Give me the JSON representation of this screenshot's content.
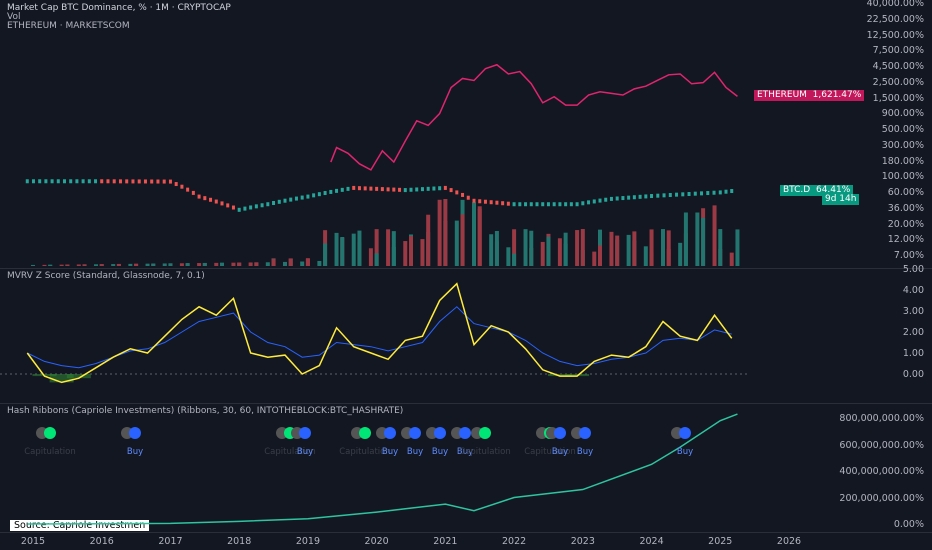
{
  "header": {
    "title": "Market Cap BTC Dominance, % · 1M · CRYPTOCAP",
    "vol": "Vol",
    "eth": "ETHEREUM · MARKETSCOM"
  },
  "pane1_axis": [
    "40,000.00%",
    "22,500.00%",
    "12,500.00%",
    "7,500.00%",
    "4,500.00%",
    "2,500.00%",
    "1,500.00%",
    "900.00%",
    "500.00%",
    "300.00%",
    "180.00%",
    "100.00%",
    "60.00%",
    "36.00%",
    "20.00%",
    "12.00%",
    "7.00%"
  ],
  "pane2_axis": [
    "5.00",
    "4.00",
    "3.00",
    "2.00",
    "1.00",
    "0.00"
  ],
  "pane3_axis": [
    "800,000,000.00%",
    "600,000,000.00%",
    "400,000,000.00%",
    "200,000,000.00%",
    "0.00%"
  ],
  "x_axis": [
    "2015",
    "2016",
    "2017",
    "2018",
    "2019",
    "2020",
    "2021",
    "2022",
    "2023",
    "2024",
    "2025",
    "2026"
  ],
  "tags": {
    "eth_name": "ETHEREUM",
    "eth_value": "1,621.47%",
    "btcd_name": "BTC.D",
    "btcd_value": "64.41%",
    "btcd_countdown": "9d 14h"
  },
  "mvrv_title": "MVRV Z Score (Standard, Glassnode, 7, 0.1)",
  "hash_title": "Hash Ribbons (Capriole Investments) (Ribbons, 30, 60, INTOTHEBLOCK:BTC_HASHRATE)",
  "source": "Source: Capriole Investmen",
  "ribbon_labels": [
    "Capitulation",
    "Buy",
    "Capitulation",
    "Buy",
    "Capitulation",
    "Buy",
    "Buy",
    "Buy",
    "Buy",
    "Capitulation",
    "Capitulation",
    "Buy",
    "Buy",
    "Buy"
  ],
  "colors": {
    "eth": "#e0246e",
    "btcd": "#26a69a",
    "mvrv": "#ffeb3b",
    "mvrv_ma": "#2962ff",
    "hash": "#2ec4a0",
    "buy": "#2962ff",
    "capitulation": "#00e676"
  },
  "chart_data": [
    {
      "type": "line",
      "series": [
        {
          "name": "ETHEREUM",
          "x": [
            "2019-05",
            "2019-06",
            "2019-08",
            "2019-10",
            "2019-12",
            "2020-02",
            "2020-04",
            "2020-06",
            "2020-08",
            "2020-10",
            "2020-12",
            "2021-02",
            "2021-04",
            "2021-06",
            "2021-08",
            "2021-10",
            "2021-12",
            "2022-02",
            "2022-04",
            "2022-06",
            "2022-08",
            "2022-10",
            "2022-12",
            "2023-02",
            "2023-04",
            "2023-06",
            "2023-08",
            "2023-10",
            "2023-12",
            "2024-02",
            "2024-04",
            "2024-06",
            "2024-08",
            "2024-10",
            "2024-12",
            "2025-02",
            "2025-04"
          ],
          "values": [
            170,
            280,
            230,
            160,
            130,
            250,
            170,
            350,
            700,
            600,
            900,
            2200,
            3000,
            2800,
            4200,
            4800,
            3500,
            3800,
            2500,
            1300,
            1600,
            1200,
            1200,
            1700,
            1900,
            1800,
            1700,
            2100,
            2300,
            2800,
            3400,
            3500,
            2500,
            2600,
            3700,
            2200,
            1621
          ]
        },
        {
          "name": "BTC.D",
          "x": [
            "2014-12",
            "2016-01",
            "2017-01",
            "2017-06",
            "2018-01",
            "2018-06",
            "2019-01",
            "2019-09",
            "2020-06",
            "2021-01",
            "2021-06",
            "2022-01",
            "2022-12",
            "2023-06",
            "2024-01",
            "2025-01",
            "2025-04"
          ],
          "values": [
            88,
            88,
            87,
            52,
            33,
            40,
            52,
            70,
            65,
            70,
            45,
            40,
            40,
            48,
            53,
            60,
            64.41
          ]
        }
      ]
    },
    {
      "type": "line",
      "title": "MVRV Z Score (Standard, Glassnode, 7, 0.1)",
      "x": [
        "2014-12",
        "2015-03",
        "2015-06",
        "2015-09",
        "2015-12",
        "2016-03",
        "2016-06",
        "2016-09",
        "2016-12",
        "2017-03",
        "2017-06",
        "2017-09",
        "2017-12",
        "2018-03",
        "2018-06",
        "2018-09",
        "2018-12",
        "2019-03",
        "2019-06",
        "2019-09",
        "2019-12",
        "2020-03",
        "2020-06",
        "2020-09",
        "2020-12",
        "2021-03",
        "2021-06",
        "2021-09",
        "2021-12",
        "2022-03",
        "2022-06",
        "2022-09",
        "2022-12",
        "2023-03",
        "2023-06",
        "2023-09",
        "2023-12",
        "2024-03",
        "2024-06",
        "2024-09",
        "2024-12",
        "2025-03"
      ],
      "series": [
        {
          "name": "MVRV Z",
          "values": [
            1.0,
            -0.1,
            -0.4,
            -0.2,
            0.3,
            0.8,
            1.2,
            1.0,
            1.8,
            2.6,
            3.2,
            2.8,
            3.6,
            1.0,
            0.8,
            0.9,
            0.0,
            0.4,
            2.2,
            1.3,
            1.0,
            0.7,
            1.6,
            1.8,
            3.5,
            4.3,
            1.4,
            2.3,
            2.0,
            1.2,
            0.2,
            -0.1,
            -0.1,
            0.6,
            0.9,
            0.8,
            1.3,
            2.5,
            1.8,
            1.6,
            2.8,
            1.7
          ]
        },
        {
          "name": "MVRV Z MA",
          "values": [
            1.0,
            0.6,
            0.4,
            0.3,
            0.5,
            0.8,
            1.1,
            1.2,
            1.5,
            2.0,
            2.5,
            2.7,
            2.9,
            2.0,
            1.5,
            1.3,
            0.8,
            0.9,
            1.5,
            1.4,
            1.3,
            1.1,
            1.3,
            1.5,
            2.5,
            3.2,
            2.4,
            2.2,
            2.0,
            1.6,
            1.0,
            0.6,
            0.4,
            0.5,
            0.7,
            0.8,
            1.0,
            1.6,
            1.7,
            1.6,
            2.1,
            1.9
          ]
        }
      ],
      "ylim": [
        -0.5,
        5
      ]
    },
    {
      "type": "line",
      "title": "Hash Ribbons (Capriole Investments) (Ribbons, 30, 60, INTOTHEBLOCK:BTC_HASHRATE)",
      "x": [
        "2014-12",
        "2016-01",
        "2017-01",
        "2018-01",
        "2019-01",
        "2020-01",
        "2021-01",
        "2021-06",
        "2022-01",
        "2023-01",
        "2024-01",
        "2024-06",
        "2025-01",
        "2025-04"
      ],
      "series": [
        {
          "name": "Hashrate",
          "values": [
            0,
            2000000,
            5000000,
            20000000,
            40000000,
            90000000,
            150000000,
            100000000,
            200000000,
            260000000,
            450000000,
            580000000,
            780000000,
            830000000
          ]
        }
      ],
      "ylim": [
        0,
        850000000
      ]
    }
  ]
}
